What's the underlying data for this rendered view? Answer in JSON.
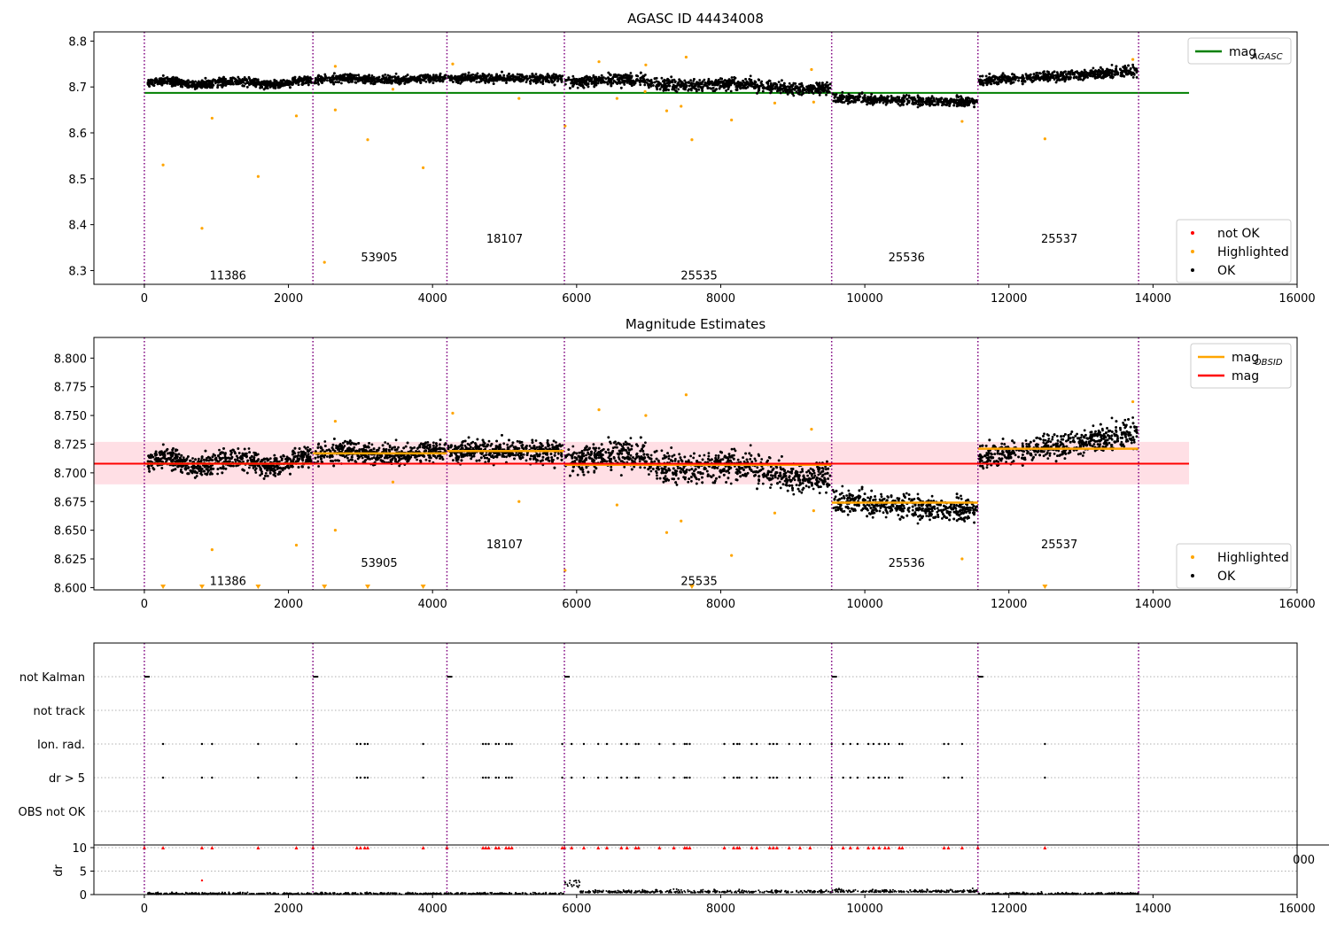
{
  "chart_data": [
    {
      "type": "scatter",
      "title": "AGASC ID 44434008",
      "xlim": [
        -700,
        16000
      ],
      "ylim": [
        8.27,
        8.82
      ],
      "xticks": [
        0,
        2000,
        4000,
        6000,
        8000,
        10000,
        12000,
        14000,
        16000
      ],
      "xtick_labels": [
        "0",
        "2000",
        "4000",
        "6000",
        "8000",
        "10000",
        "12000",
        "14000",
        "16000"
      ],
      "yticks": [
        8.3,
        8.4,
        8.5,
        8.6,
        8.7,
        8.8
      ],
      "ytick_labels": [
        "8.3",
        "8.4",
        "8.5",
        "8.6",
        "8.7",
        "8.8"
      ],
      "legend_upper": [
        {
          "label": "mag",
          "sub": "AGASC",
          "color": "#008000",
          "kind": "line"
        }
      ],
      "legend_lower": [
        {
          "label": "not OK",
          "color": "#ff0000",
          "kind": "dot"
        },
        {
          "label": "Highlighted",
          "color": "#ffa500",
          "kind": "dot"
        },
        {
          "label": "OK",
          "color": "#000000",
          "kind": "dot"
        }
      ],
      "agasc_mag": 8.687,
      "agasc_line_x": [
        0,
        14500
      ],
      "obs_labels": [
        {
          "text": "11386",
          "x": 1160,
          "y": 8.29
        },
        {
          "text": "53905",
          "x": 3260,
          "y": 8.33
        },
        {
          "text": "18107",
          "x": 5000,
          "y": 8.37
        },
        {
          "text": "25535",
          "x": 7700,
          "y": 8.29
        },
        {
          "text": "25536",
          "x": 10580,
          "y": 8.33
        },
        {
          "text": "25537",
          "x": 12700,
          "y": 8.37
        }
      ],
      "highlighted_points": [
        [
          260,
          8.53
        ],
        [
          800,
          8.392
        ],
        [
          940,
          8.632
        ],
        [
          1580,
          8.505
        ],
        [
          2110,
          8.637
        ],
        [
          2500,
          8.318
        ],
        [
          2650,
          8.65
        ],
        [
          3100,
          8.585
        ],
        [
          3870,
          8.524
        ],
        [
          3450,
          8.695
        ],
        [
          4280,
          8.75
        ],
        [
          5200,
          8.675
        ],
        [
          5840,
          8.615
        ],
        [
          6310,
          8.755
        ],
        [
          6560,
          8.675
        ],
        [
          6950,
          8.69
        ],
        [
          7250,
          8.648
        ],
        [
          7450,
          8.658
        ],
        [
          7520,
          8.765
        ],
        [
          7600,
          8.585
        ],
        [
          8150,
          8.628
        ],
        [
          8750,
          8.665
        ],
        [
          9290,
          8.667
        ],
        [
          11350,
          8.625
        ],
        [
          12500,
          8.587
        ],
        [
          13720,
          8.76
        ],
        [
          2650,
          8.745
        ],
        [
          6960,
          8.748
        ],
        [
          9260,
          8.738
        ]
      ]
    },
    {
      "type": "scatter",
      "title": "Magnitude Estimates",
      "xlim": [
        -700,
        16000
      ],
      "ylim": [
        8.598,
        8.818
      ],
      "xticks": [
        0,
        2000,
        4000,
        6000,
        8000,
        10000,
        12000,
        14000,
        16000
      ],
      "xtick_labels": [
        "0",
        "2000",
        "4000",
        "6000",
        "8000",
        "10000",
        "12000",
        "14000",
        "16000"
      ],
      "yticks": [
        8.6,
        8.625,
        8.65,
        8.675,
        8.7,
        8.725,
        8.75,
        8.775,
        8.8
      ],
      "ytick_labels": [
        "8.600",
        "8.625",
        "8.650",
        "8.675",
        "8.700",
        "8.725",
        "8.750",
        "8.775",
        "8.800"
      ],
      "legend_upper": [
        {
          "label": "mag",
          "sub": "OBSID",
          "color": "#ffa500",
          "kind": "line"
        },
        {
          "label": "mag",
          "sub": "",
          "color": "#ff0000",
          "kind": "line"
        }
      ],
      "legend_lower": [
        {
          "label": "Highlighted",
          "color": "#ffa500",
          "kind": "dot"
        },
        {
          "label": "OK",
          "color": "#000000",
          "kind": "dot"
        }
      ],
      "mag": 8.708,
      "mag_band": [
        8.69,
        8.727
      ],
      "mag_line_x": [
        -700,
        14500
      ],
      "obsid_means": [
        {
          "x0": 0,
          "x1": 2340,
          "value": 8.708
        },
        {
          "x0": 2340,
          "x1": 4200,
          "value": 8.717
        },
        {
          "x0": 4200,
          "x1": 5830,
          "value": 8.719
        },
        {
          "x0": 5830,
          "x1": 9540,
          "value": 8.707
        },
        {
          "x0": 9540,
          "x1": 11570,
          "value": 8.674
        },
        {
          "x0": 11570,
          "x1": 13800,
          "value": 8.721
        }
      ],
      "obs_labels": [
        {
          "text": "11386",
          "x": 1160,
          "y": 8.606
        },
        {
          "text": "53905",
          "x": 3260,
          "y": 8.622
        },
        {
          "text": "18107",
          "x": 5000,
          "y": 8.638
        },
        {
          "text": "25535",
          "x": 7700,
          "y": 8.606
        },
        {
          "text": "25536",
          "x": 10580,
          "y": 8.622
        },
        {
          "text": "25537",
          "x": 12700,
          "y": 8.638
        }
      ],
      "off_scale_x": [
        260,
        800,
        1580,
        2500,
        3100,
        3870,
        7600,
        12500
      ],
      "highlighted_points": [
        [
          940,
          8.633
        ],
        [
          2110,
          8.637
        ],
        [
          2650,
          8.65
        ],
        [
          3450,
          8.692
        ],
        [
          5200,
          8.675
        ],
        [
          5840,
          8.615
        ],
        [
          6310,
          8.755
        ],
        [
          6560,
          8.672
        ],
        [
          6960,
          8.75
        ],
        [
          7250,
          8.648
        ],
        [
          7450,
          8.658
        ],
        [
          7520,
          8.768
        ],
        [
          8150,
          8.628
        ],
        [
          8750,
          8.665
        ],
        [
          9290,
          8.667
        ],
        [
          11350,
          8.625
        ],
        [
          13720,
          8.762
        ],
        [
          4280,
          8.752
        ],
        [
          2650,
          8.745
        ],
        [
          9260,
          8.738
        ]
      ]
    },
    {
      "type": "scatter",
      "title": "",
      "xlim": [
        -700,
        16000
      ],
      "xticks": [
        0,
        2000,
        4000,
        6000,
        8000,
        10000,
        12000,
        14000,
        16000
      ],
      "xtick_labels": [
        "0",
        "2000",
        "4000",
        "6000",
        "8000",
        "10000",
        "12000",
        "14000",
        "16000"
      ],
      "flag_rows": [
        "not Kalman",
        "not track",
        "Ion. rad.",
        "dr > 5",
        "OBS not OK"
      ],
      "dr_ylim": [
        0,
        10
      ],
      "dr_yticks": [
        0,
        5,
        10
      ],
      "dr_ytick_labels": [
        "0",
        "5",
        "10"
      ],
      "dr_ylabel": "dr",
      "overflow_label": "000",
      "not_kalman_x": [
        0,
        2340,
        4200,
        5830,
        9540,
        11570
      ],
      "ion_rad_x": [
        260,
        800,
        940,
        1580,
        2110,
        2950,
        3000,
        3060,
        3100,
        3870,
        4700,
        4740,
        4780,
        4880,
        4920,
        5020,
        5060,
        5100,
        5800,
        5930,
        6100,
        6300,
        6420,
        6620,
        6700,
        6820,
        6860,
        7150,
        7350,
        7500,
        7530,
        7570,
        8050,
        8180,
        8230,
        8260,
        8430,
        8500,
        8680,
        8730,
        8780,
        8950,
        9100,
        9240,
        9540,
        9700,
        9800,
        9900,
        10050,
        10120,
        10200,
        10280,
        10330,
        10480,
        10520,
        11100,
        11160,
        11350,
        12500
      ]
    }
  ],
  "obs_boundaries": [
    0,
    2340,
    4200,
    5830,
    9540,
    11570,
    13800
  ],
  "colors": {
    "ok": "#000000",
    "highlighted": "#ffa500",
    "not_ok": "#ff0000",
    "agasc": "#008000",
    "mag": "#ff0000",
    "obsid": "#ffa500",
    "boundary": "#7f007f",
    "band": "#ffc0cb"
  }
}
